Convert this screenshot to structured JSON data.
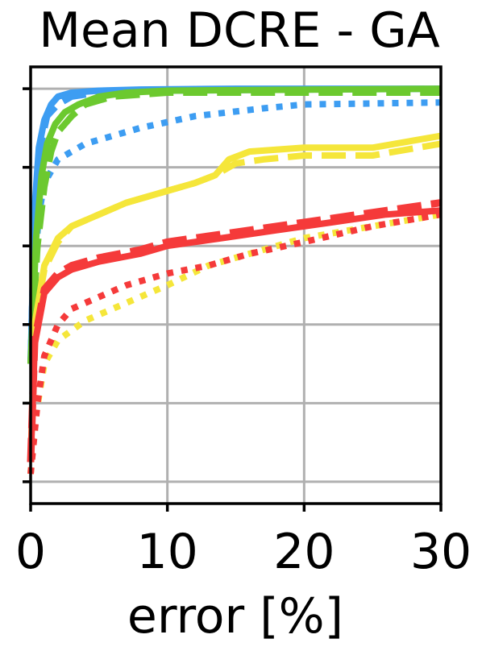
{
  "chart_data": {
    "type": "line",
    "title": "Mean DCRE - GA",
    "xlabel": "error [%]",
    "ylabel": "",
    "xlim": [
      0,
      30
    ],
    "ylim": [
      0,
      1
    ],
    "x_ticks": [
      0,
      10,
      20,
      30
    ],
    "x_tick_labels": [
      "0",
      "10",
      "20",
      "30"
    ],
    "y_ticks": [
      0,
      0.2,
      0.4,
      0.6,
      0.8,
      1.0
    ],
    "y_tick_labels_shown": false,
    "grid": true,
    "series": [
      {
        "color": "#3d9df2",
        "style": "solid",
        "width": 8,
        "x": [
          0,
          0.3,
          0.6,
          1.0,
          1.5,
          2.0,
          3.0,
          5.0,
          8.0,
          15.0,
          30.0
        ],
        "y": [
          0.3,
          0.7,
          0.85,
          0.92,
          0.96,
          0.98,
          0.99,
          0.995,
          0.998,
          1.0,
          1.0
        ]
      },
      {
        "color": "#3d9df2",
        "style": "dashed",
        "width": 8,
        "x": [
          0,
          0.3,
          0.7,
          1.2,
          2.0,
          3.0,
          5.0,
          10.0,
          20.0,
          30.0
        ],
        "y": [
          0.3,
          0.7,
          0.85,
          0.93,
          0.96,
          0.98,
          0.99,
          0.995,
          0.998,
          1.0
        ]
      },
      {
        "color": "#3d9df2",
        "style": "dotted",
        "width": 8,
        "x": [
          0,
          0.3,
          0.6,
          1.0,
          2.0,
          4.0,
          8.0,
          12.0,
          17.0,
          20.0,
          30.0
        ],
        "y": [
          0.3,
          0.55,
          0.68,
          0.76,
          0.82,
          0.86,
          0.9,
          0.93,
          0.95,
          0.96,
          0.965
        ]
      },
      {
        "color": "#6cc92f",
        "style": "solid",
        "width": 8,
        "x": [
          0,
          0.4,
          0.8,
          1.2,
          1.8,
          2.5,
          3.5,
          5.0,
          7.0,
          10.0,
          30.0
        ],
        "y": [
          0.3,
          0.62,
          0.78,
          0.86,
          0.91,
          0.94,
          0.96,
          0.98,
          0.99,
          0.995,
          1.0
        ]
      },
      {
        "color": "#6cc92f",
        "style": "dashed",
        "width": 8,
        "x": [
          0,
          0.5,
          1.0,
          1.5,
          2.0,
          3.0,
          4.0,
          6.0,
          10.0,
          30.0
        ],
        "y": [
          0.3,
          0.6,
          0.75,
          0.84,
          0.89,
          0.93,
          0.96,
          0.98,
          0.99,
          0.99
        ]
      },
      {
        "color": "#f5e63a",
        "style": "solid",
        "width": 8,
        "x": [
          0,
          0.3,
          1.0,
          2.0,
          3.0,
          5.0,
          7.0,
          10.0,
          12.0,
          13.5,
          14.5,
          16.0,
          20.0,
          25.0,
          30.0
        ],
        "y": [
          0.05,
          0.4,
          0.55,
          0.62,
          0.65,
          0.68,
          0.71,
          0.74,
          0.76,
          0.78,
          0.82,
          0.84,
          0.85,
          0.85,
          0.88
        ]
      },
      {
        "color": "#f5e63a",
        "style": "dashed",
        "width": 8,
        "x": [
          0,
          0.3,
          1.0,
          2.0,
          3.0,
          5.0,
          7.0,
          10.0,
          12.0,
          13.5,
          15.0,
          17.0,
          20.0,
          25.0,
          30.0
        ],
        "y": [
          0.05,
          0.4,
          0.54,
          0.61,
          0.65,
          0.68,
          0.71,
          0.74,
          0.76,
          0.78,
          0.81,
          0.82,
          0.83,
          0.83,
          0.86
        ]
      },
      {
        "color": "#f5e63a",
        "style": "dotted",
        "width": 8,
        "x": [
          0,
          0.3,
          1.0,
          2.0,
          4.0,
          6.0,
          8.0,
          10.0,
          13.0,
          16.0,
          20.0,
          25.0,
          30.0
        ],
        "y": [
          0.02,
          0.15,
          0.3,
          0.36,
          0.41,
          0.44,
          0.47,
          0.5,
          0.55,
          0.58,
          0.62,
          0.65,
          0.68
        ]
      },
      {
        "color": "#f53a3a",
        "style": "solid",
        "width": 8,
        "x": [
          0,
          0.3,
          1.0,
          2.0,
          3.0,
          5.0,
          8.0,
          10.0,
          14.0,
          18.0,
          22.0,
          26.0,
          30.0
        ],
        "y": [
          0.05,
          0.35,
          0.48,
          0.52,
          0.54,
          0.56,
          0.58,
          0.6,
          0.62,
          0.64,
          0.66,
          0.68,
          0.69
        ]
      },
      {
        "color": "#f53a3a",
        "style": "dashed",
        "width": 9,
        "x": [
          0,
          0.3,
          1.0,
          2.0,
          3.0,
          5.0,
          8.0,
          10.0,
          14.0,
          18.0,
          22.0,
          26.0,
          30.0
        ],
        "y": [
          0.05,
          0.36,
          0.49,
          0.53,
          0.55,
          0.57,
          0.59,
          0.61,
          0.63,
          0.65,
          0.67,
          0.69,
          0.71
        ]
      },
      {
        "color": "#f53a3a",
        "style": "dotted",
        "width": 8,
        "x": [
          0,
          0.5,
          1.0,
          2.0,
          3.0,
          5.0,
          7.0,
          10.0,
          13.0,
          16.0,
          20.0,
          25.0,
          30.0
        ],
        "y": [
          0.02,
          0.2,
          0.32,
          0.4,
          0.44,
          0.47,
          0.5,
          0.53,
          0.55,
          0.58,
          0.61,
          0.65,
          0.68
        ]
      }
    ]
  }
}
